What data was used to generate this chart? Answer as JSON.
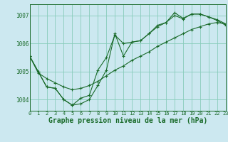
{
  "background_color": "#cce8f0",
  "grid_color": "#88ccbb",
  "line_color": "#1a6b2a",
  "marker": "+",
  "marker_size": 3,
  "marker_lw": 0.8,
  "line_width": 0.8,
  "title": "Graphe pression niveau de la mer (hPa)",
  "title_fontsize": 7,
  "xlim": [
    0,
    23
  ],
  "ylim": [
    1003.6,
    1007.4
  ],
  "yticks": [
    1004,
    1005,
    1006,
    1007
  ],
  "xtick_fontsize": 5,
  "ytick_fontsize": 5.5,
  "series1_x": [
    0,
    1,
    2,
    3,
    4,
    5,
    6,
    7,
    8,
    9,
    10,
    11,
    12,
    13,
    14,
    15,
    16,
    17,
    18,
    19,
    20,
    21,
    22,
    23
  ],
  "series1_y": [
    1005.55,
    1005.0,
    1004.45,
    1004.4,
    1004.0,
    1003.8,
    1003.85,
    1004.0,
    1004.5,
    1005.05,
    1006.35,
    1005.55,
    1006.05,
    1006.1,
    1006.35,
    1006.65,
    1006.75,
    1007.1,
    1006.9,
    1007.05,
    1007.05,
    1006.95,
    1006.85,
    1006.7
  ],
  "series2_x": [
    0,
    1,
    2,
    3,
    4,
    5,
    6,
    7,
    8,
    9,
    10,
    11,
    12,
    13,
    14,
    15,
    16,
    17,
    18,
    19,
    20,
    21,
    22,
    23
  ],
  "series2_y": [
    1005.55,
    1005.0,
    1004.45,
    1004.4,
    1004.0,
    1003.8,
    1004.05,
    1004.15,
    1005.05,
    1005.5,
    1006.3,
    1006.0,
    1006.05,
    1006.1,
    1006.35,
    1006.6,
    1006.75,
    1007.0,
    1006.88,
    1007.05,
    1007.05,
    1006.95,
    1006.82,
    1006.65
  ],
  "series3_x": [
    0,
    1,
    2,
    3,
    4,
    5,
    6,
    7,
    8,
    9,
    10,
    11,
    12,
    13,
    14,
    15,
    16,
    17,
    18,
    19,
    20,
    21,
    22,
    23
  ],
  "series3_y": [
    1005.55,
    1004.95,
    1004.75,
    1004.6,
    1004.45,
    1004.35,
    1004.4,
    1004.5,
    1004.65,
    1004.85,
    1005.05,
    1005.2,
    1005.4,
    1005.55,
    1005.7,
    1005.9,
    1006.05,
    1006.2,
    1006.35,
    1006.5,
    1006.6,
    1006.7,
    1006.75,
    1006.7
  ]
}
